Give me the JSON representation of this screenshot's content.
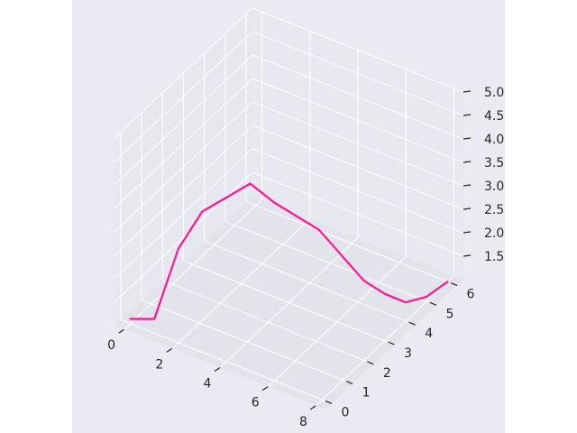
{
  "chart_data": {
    "type": "line3d",
    "title": "",
    "xlabel": "",
    "ylabel": "",
    "zlabel": "",
    "xlim": [
      -0.4,
      8.4
    ],
    "ylim": [
      -0.3,
      6.3
    ],
    "zlim": [
      1.0,
      5.0
    ],
    "x_ticks": [
      "0",
      "2",
      "4",
      "6",
      "8"
    ],
    "y_ticks": [
      "0",
      "1",
      "2",
      "3",
      "4",
      "5",
      "6"
    ],
    "z_ticks": [
      "1.5",
      "2.0",
      "2.5",
      "3.0",
      "3.5",
      "4.0",
      "4.5",
      "5.0"
    ],
    "grid": true,
    "pane_color": "#eaeaf2",
    "line_color": "#ff1493",
    "series": [
      {
        "x": [
          0,
          1,
          2,
          3,
          4,
          5,
          6,
          7,
          8,
          8,
          8,
          8,
          8
        ],
        "y": [
          0,
          0,
          0,
          0,
          0,
          0,
          0,
          1,
          2,
          3,
          4,
          5,
          6
        ],
        "z": [
          1.1,
          1.3,
          3.0,
          4.0,
          4.5,
          5.0,
          4.8,
          4.0,
          2.7,
          2.0,
          1.4,
          1.1,
          1.0
        ]
      }
    ]
  }
}
